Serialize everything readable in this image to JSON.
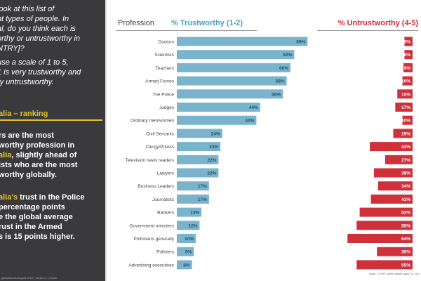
{
  "left_panel": {
    "question": [
      "look at this list of",
      "nt types of people. In",
      "al, do you think each is",
      "orthy or untrustworthy in",
      "NTRY]?"
    ],
    "scale": [
      "use a scale of 1 to 5,",
      "1 is very trustworthy and",
      "ry untrustworthy."
    ],
    "ranking_label": "alia – ranking",
    "insight1": [
      {
        "pre": "rs are the most",
        "hl": "",
        "post": ""
      },
      {
        "pre": "worthy profession in",
        "hl": "",
        "post": ""
      },
      {
        "pre": "",
        "hl": "alia",
        "post": ", slightly ahead of"
      },
      {
        "pre": "ists who are the most",
        "hl": "",
        "post": ""
      },
      {
        "pre": "worthy globally.",
        "hl": "",
        "post": ""
      }
    ],
    "insight2": [
      {
        "pre": "",
        "hl": "alia's",
        "post": " trust in the Police"
      },
      {
        "pre": "percentage points",
        "hl": "",
        "post": ""
      },
      {
        "pre": "e the global average",
        "hl": "",
        "post": ""
      },
      {
        "pre": "rust in the Armed",
        "hl": "",
        "post": ""
      },
      {
        "pre": "s is 15 points higher.",
        "hl": "",
        "post": ""
      }
    ],
    "footer": "globaltrends August 2019 | Version 1 | Public"
  },
  "header": {
    "profession": "Profession",
    "trustworthy": "% Trustworthy (1-2)",
    "untrustworthy": "% Untrustworthy (4-5)"
  },
  "footnote": "Base: 19,587 online adults aged 16-74 a",
  "colors": {
    "trust_bar": "#79b4cc",
    "untrust_bar": "#cf313b",
    "accent": "#e3c42a",
    "panel": "#3a3a3c"
  },
  "chart_data": {
    "type": "bar",
    "categories": [
      "Doctors",
      "Scientists",
      "Teachers",
      "Armed Forces",
      "The Police",
      "Judges",
      "Ordinary men/women",
      "Civil Servants",
      "Clergy/Priests",
      "Television news readers",
      "Lawyers",
      "Business Leaders",
      "Journalists",
      "Bankers",
      "Government ministers",
      "Politicians generally",
      "Pollsters",
      "Advertising executives"
    ],
    "series": [
      {
        "name": "% Trustworthy (1-2)",
        "values": [
          69,
          62,
          60,
          58,
          56,
          44,
          42,
          24,
          23,
          22,
          22,
          17,
          17,
          13,
          12,
          10,
          9,
          8
        ]
      },
      {
        "name": "% Untrustworthy (4-5)",
        "values": [
          8,
          8,
          9,
          10,
          15,
          17,
          10,
          19,
          42,
          27,
          38,
          34,
          41,
          52,
          55,
          64,
          35,
          55
        ]
      }
    ],
    "value_suffix": "%"
  }
}
